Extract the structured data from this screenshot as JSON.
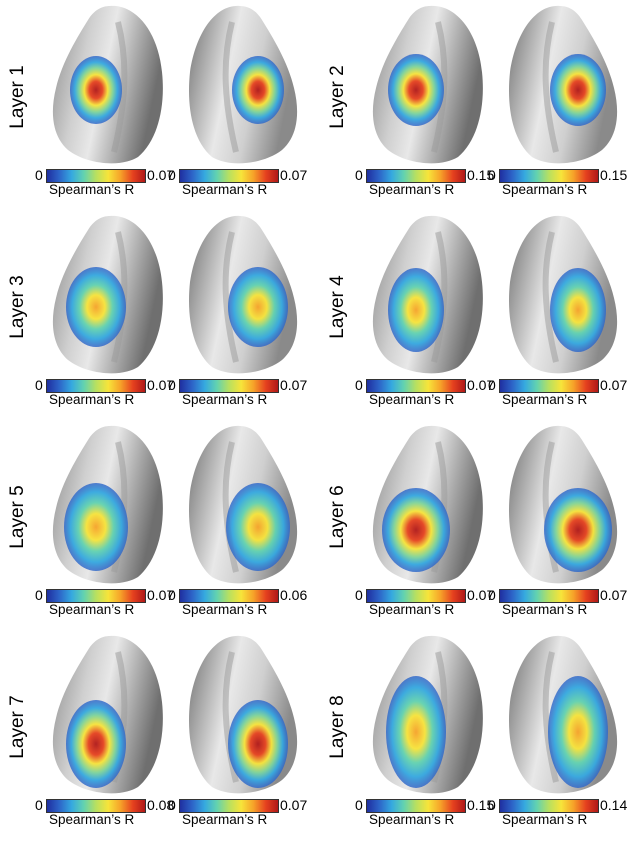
{
  "colorbar_title": "Spearman’s R",
  "colorbar_min": "0",
  "layers": [
    {
      "label": "Layer 1",
      "left_max": "0.07",
      "right_max": "0.07"
    },
    {
      "label": "Layer 2",
      "left_max": "0.15",
      "right_max": "0.15"
    },
    {
      "label": "Layer 3",
      "left_max": "0.07",
      "right_max": "0.07"
    },
    {
      "label": "Layer 4",
      "left_max": "0.07",
      "right_max": "0.07"
    },
    {
      "label": "Layer 5",
      "left_max": "0.07",
      "right_max": "0.06"
    },
    {
      "label": "Layer 6",
      "left_max": "0.07",
      "right_max": "0.07"
    },
    {
      "label": "Layer 7",
      "left_max": "0.08",
      "right_max": "0.07"
    },
    {
      "label": "Layer 8",
      "left_max": "0.15",
      "right_max": "0.14"
    }
  ],
  "colors": {
    "cortex_light": "#e6e6e6",
    "cortex_dark": "#7a7a7a",
    "map_low": "#1f2fa0",
    "map_mid": "#f7e43a",
    "map_high": "#b01818"
  }
}
